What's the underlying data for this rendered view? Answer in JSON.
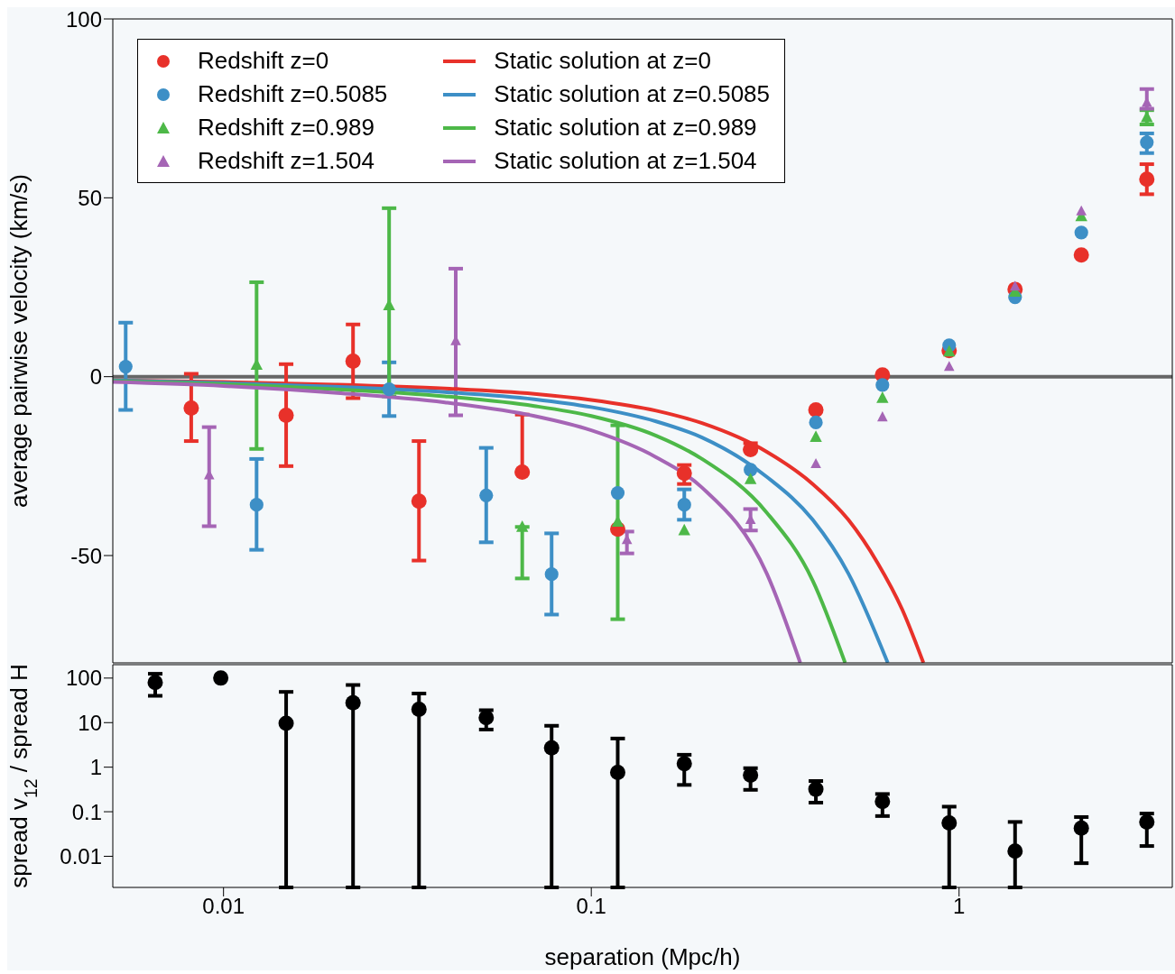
{
  "chart_data": [
    {
      "type": "scatter",
      "ylabel": "average pairwise velocity (km/s)",
      "xlim": [
        0.005,
        3.8
      ],
      "xticks": [
        0.01,
        0.1,
        1
      ],
      "ylim": [
        -80,
        100
      ],
      "yticks": [
        -50,
        0,
        50,
        100
      ],
      "log": "x",
      "tick_labels": "y",
      "legend": "top left",
      "grid": false,
      "ref_lines": [
        {
          "axis": "y",
          "value": 0,
          "color": "#666666"
        }
      ],
      "series": [
        {
          "name": "Redshift z=0",
          "color": "#e8312a",
          "marker": "circle",
          "x": [
            0.00817,
            0.0148,
            0.0225,
            0.034,
            0.0649,
            0.118,
            0.179,
            0.271,
            0.408,
            0.619,
            0.94,
            1.42,
            2.15,
            3.24
          ],
          "values": [
            -8.8,
            -10.8,
            4.3,
            -34.8,
            -26.7,
            -42.6,
            -27,
            -20.4,
            -9.3,
            0.5,
            7.3,
            24.4,
            34,
            55.2
          ],
          "errors": [
            [
              -18,
              0.8
            ],
            [
              -25,
              3.5
            ],
            [
              -6,
              14.6
            ],
            [
              -51.4,
              -18
            ],
            [
              -26.7,
              -10.6
            ],
            null,
            [
              -30,
              -24.7
            ],
            [
              -20.4,
              -18.6
            ],
            null,
            null,
            null,
            null,
            null,
            [
              51,
              59.4
            ]
          ]
        },
        {
          "name": "Redshift z=0.5085",
          "color": "#3d8fc6",
          "marker": "circle",
          "x": [
            0.00542,
            0.0123,
            0.0282,
            0.0518,
            0.078,
            0.118,
            0.179,
            0.271,
            0.408,
            0.619,
            0.94,
            1.42,
            2.15,
            3.24
          ],
          "values": [
            2.8,
            -35.8,
            -3.5,
            -33.2,
            -55.2,
            -32.5,
            -35.8,
            -26,
            -12.8,
            -2.3,
            8.8,
            22.2,
            40.3,
            65.5
          ],
          "errors": [
            [
              -9.3,
              15.1
            ],
            [
              -48.4,
              -23
            ],
            [
              -11,
              4
            ],
            [
              -46.3,
              -19.9
            ],
            [
              -66.5,
              -43.8
            ],
            null,
            [
              -40,
              -31.5
            ],
            null,
            null,
            null,
            null,
            null,
            null,
            [
              62.5,
              68
            ]
          ]
        },
        {
          "name": "Redshift z=0.989",
          "color": "#4db848",
          "marker": "triangle",
          "x": [
            0.0123,
            0.0282,
            0.0649,
            0.118,
            0.179,
            0.271,
            0.408,
            0.619,
            0.94,
            1.42,
            2.15,
            3.24
          ],
          "values": [
            3.3,
            19.9,
            -42,
            -40.6,
            -43,
            -28.7,
            -16.9,
            -6,
            7,
            23.7,
            44.8,
            72.5
          ],
          "errors": [
            [
              -20.2,
              26.4
            ],
            [
              -5.5,
              47.1
            ],
            [
              -56.4,
              -42
            ],
            [
              -67.8,
              -13.6
            ],
            null,
            null,
            null,
            null,
            null,
            null,
            null,
            [
              70.5,
              74.5
            ]
          ]
        },
        {
          "name": "Redshift z=1.504",
          "color": "#a565b5",
          "marker": "triangle",
          "x": [
            0.00914,
            0.0428,
            0.125,
            0.271,
            0.408,
            0.619,
            0.94,
            1.42,
            2.15,
            3.24
          ],
          "values": [
            -27.5,
            10,
            -45.6,
            -40,
            -24.4,
            -11.3,
            2.8,
            25.2,
            46.3,
            76.6
          ],
          "errors": [
            [
              -41.8,
              -14.1
            ],
            [
              -10.8,
              30.2
            ],
            [
              -49.4,
              -43.3
            ],
            [
              -43,
              -37
            ],
            null,
            null,
            null,
            null,
            null,
            [
              74.9,
              80.4
            ]
          ]
        },
        {
          "name": "Static solution at z=0",
          "type": "line",
          "color": "#e8312a",
          "x": [
            0.005,
            0.01,
            0.02,
            0.04,
            0.07,
            0.1,
            0.15,
            0.2,
            0.3,
            0.4,
            0.5,
            0.6,
            0.7,
            0.8
          ],
          "values": [
            -1,
            -1.5,
            -2.2,
            -3.3,
            -4.8,
            -6.5,
            -9.5,
            -13,
            -21,
            -30,
            -40,
            -52,
            -65,
            -80
          ]
        },
        {
          "name": "Static solution at z=0.5085",
          "type": "line",
          "color": "#3d8fc6",
          "x": [
            0.005,
            0.01,
            0.02,
            0.04,
            0.07,
            0.1,
            0.15,
            0.2,
            0.3,
            0.4,
            0.5,
            0.64
          ],
          "values": [
            -1,
            -1.8,
            -2.8,
            -4.3,
            -6.3,
            -8.5,
            -12.5,
            -17,
            -28,
            -40,
            -55,
            -80
          ]
        },
        {
          "name": "Static solution at z=0.989",
          "type": "line",
          "color": "#4db848",
          "x": [
            0.005,
            0.01,
            0.02,
            0.04,
            0.07,
            0.1,
            0.15,
            0.2,
            0.3,
            0.4,
            0.49
          ],
          "values": [
            -1.2,
            -2.1,
            -3.5,
            -5.5,
            -8.2,
            -11,
            -16.5,
            -23,
            -38,
            -57,
            -80
          ]
        },
        {
          "name": "Static solution at z=1.504",
          "type": "line",
          "color": "#a565b5",
          "x": [
            0.005,
            0.01,
            0.02,
            0.04,
            0.07,
            0.1,
            0.15,
            0.2,
            0.3,
            0.37
          ],
          "values": [
            -1.5,
            -2.6,
            -4.5,
            -7.2,
            -11,
            -15,
            -22.5,
            -31,
            -55,
            -80
          ]
        }
      ]
    },
    {
      "type": "scatter",
      "xlabel": "separation (Mpc/h)",
      "ylabel": "spread v$_{12}$ / spread H",
      "xlim": [
        0.005,
        3.8
      ],
      "xticks": [
        0.01,
        0.1,
        1
      ],
      "ylim": [
        0.002,
        200
      ],
      "yticks": [
        0.01,
        0.1,
        1,
        10,
        100
      ],
      "log": "xy",
      "grid": false,
      "series": [
        {
          "color": "#000000",
          "marker": "circle",
          "x": [
            0.00652,
            0.00983,
            0.0148,
            0.0225,
            0.034,
            0.0518,
            0.078,
            0.118,
            0.179,
            0.271,
            0.408,
            0.619,
            0.94,
            1.42,
            2.15,
            3.24
          ],
          "values": [
            80,
            100,
            9.7,
            28,
            20,
            13,
            2.7,
            0.76,
            1.2,
            0.66,
            0.32,
            0.17,
            0.056,
            0.013,
            0.043,
            0.059
          ],
          "errors": [
            [
              40,
              125
            ],
            null,
            [
              0.002,
              49
            ],
            [
              0.002,
              70
            ],
            [
              0.002,
              45
            ],
            [
              7,
              19
            ],
            [
              0.002,
              8.5
            ],
            [
              0.002,
              4.4
            ],
            [
              0.4,
              1.9
            ],
            [
              0.31,
              0.95
            ],
            [
              0.16,
              0.49
            ],
            [
              0.08,
              0.25
            ],
            [
              0.002,
              0.13
            ],
            [
              0.002,
              0.059
            ],
            [
              0.007,
              0.076
            ],
            [
              0.017,
              0.091
            ]
          ]
        }
      ]
    }
  ]
}
